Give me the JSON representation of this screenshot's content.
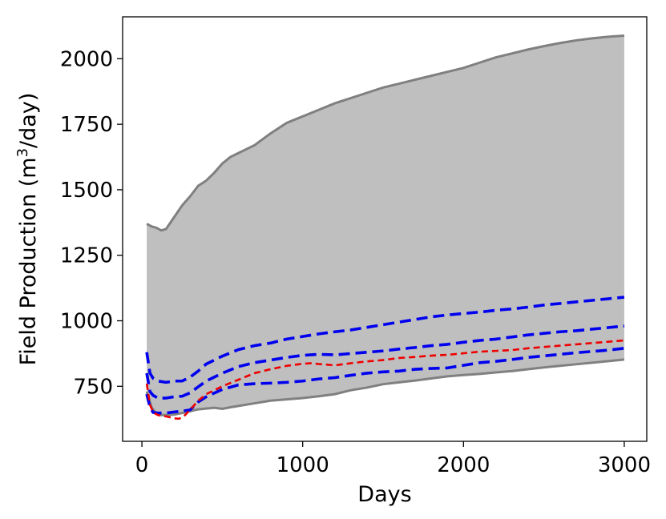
{
  "chart_data": {
    "type": "area",
    "title": "",
    "xlabel": "Days",
    "ylabel_main": "Field Production (m",
    "ylabel_sup": "3",
    "ylabel_tail": "/day)",
    "xlim": [
      -120,
      3140
    ],
    "ylim": [
      540,
      2160
    ],
    "xticks": [
      0,
      1000,
      2000,
      3000
    ],
    "xtick_labels": [
      "0",
      "1000",
      "2000",
      "3000"
    ],
    "yticks": [
      750,
      1000,
      1250,
      1500,
      1750,
      2000
    ],
    "ytick_labels": [
      "750",
      "1000",
      "1250",
      "1500",
      "1750",
      "2000"
    ],
    "grid": false,
    "colors": {
      "band_fill": "#bfbfbf",
      "band_edge": "#808080",
      "percentiles": "#0000ee",
      "reference": "#ee0000"
    },
    "band": {
      "x": [
        30,
        60,
        90,
        120,
        150,
        200,
        250,
        300,
        350,
        400,
        450,
        500,
        550,
        600,
        700,
        800,
        900,
        1000,
        1100,
        1200,
        1300,
        1400,
        1500,
        1600,
        1700,
        1800,
        1900,
        2000,
        2100,
        2200,
        2300,
        2400,
        2500,
        2600,
        2700,
        2800,
        2900,
        3000
      ],
      "upper": [
        1370,
        1360,
        1355,
        1345,
        1350,
        1395,
        1440,
        1475,
        1515,
        1535,
        1565,
        1600,
        1625,
        1640,
        1670,
        1715,
        1755,
        1780,
        1805,
        1830,
        1850,
        1870,
        1890,
        1905,
        1920,
        1935,
        1950,
        1965,
        1985,
        2005,
        2020,
        2035,
        2048,
        2060,
        2070,
        2078,
        2084,
        2088
      ],
      "lower": [
        730,
        670,
        645,
        640,
        640,
        642,
        648,
        655,
        662,
        665,
        668,
        664,
        670,
        675,
        685,
        695,
        700,
        705,
        712,
        720,
        735,
        745,
        758,
        765,
        772,
        780,
        788,
        793,
        797,
        803,
        808,
        815,
        822,
        828,
        834,
        840,
        846,
        852
      ]
    },
    "series": [
      {
        "style": "dashed",
        "color": "#0000ee",
        "x": [
          30,
          50,
          70,
          100,
          150,
          200,
          250,
          300,
          350,
          400,
          500,
          600,
          700,
          800,
          900,
          1000,
          1100,
          1200,
          1300,
          1400,
          1500,
          1600,
          1700,
          1800,
          1900,
          2000,
          2100,
          2200,
          2300,
          2400,
          2500,
          2600,
          2700,
          2800,
          2900,
          3000
        ],
        "values": [
          880,
          800,
          780,
          770,
          765,
          770,
          770,
          785,
          808,
          835,
          865,
          890,
          905,
          915,
          930,
          940,
          950,
          958,
          965,
          975,
          985,
          995,
          1005,
          1015,
          1022,
          1028,
          1033,
          1040,
          1045,
          1052,
          1060,
          1066,
          1072,
          1078,
          1084,
          1090
        ]
      },
      {
        "style": "dashed",
        "color": "#0000ee",
        "x": [
          30,
          50,
          70,
          100,
          150,
          200,
          250,
          300,
          350,
          400,
          500,
          600,
          700,
          800,
          900,
          1000,
          1100,
          1200,
          1300,
          1400,
          1500,
          1600,
          1700,
          1800,
          1900,
          2000,
          2100,
          2200,
          2300,
          2400,
          2500,
          2600,
          2700,
          2800,
          2900,
          3000
        ],
        "values": [
          800,
          730,
          715,
          705,
          705,
          710,
          712,
          725,
          748,
          770,
          800,
          825,
          840,
          850,
          860,
          868,
          872,
          870,
          875,
          880,
          885,
          892,
          898,
          905,
          910,
          918,
          925,
          930,
          938,
          946,
          952,
          958,
          962,
          968,
          974,
          980
        ]
      },
      {
        "style": "dashed",
        "color": "#0000ee",
        "x": [
          30,
          50,
          70,
          100,
          150,
          200,
          250,
          300,
          350,
          400,
          500,
          600,
          700,
          800,
          900,
          1000,
          1100,
          1200,
          1300,
          1400,
          1500,
          1600,
          1700,
          1800,
          1900,
          2000,
          2100,
          2200,
          2300,
          2400,
          2500,
          2600,
          2700,
          2800,
          2900,
          3000
        ],
        "values": [
          720,
          670,
          650,
          648,
          648,
          652,
          655,
          660,
          690,
          710,
          738,
          755,
          760,
          762,
          765,
          770,
          778,
          783,
          792,
          800,
          805,
          808,
          815,
          818,
          820,
          830,
          840,
          845,
          852,
          860,
          866,
          872,
          878,
          883,
          888,
          895
        ]
      },
      {
        "style": "dashed",
        "color": "#ee0000",
        "x": [
          30,
          50,
          70,
          100,
          150,
          200,
          230,
          260,
          300,
          350,
          400,
          450,
          500,
          600,
          700,
          800,
          900,
          1000,
          1050,
          1100,
          1200,
          1300,
          1400,
          1500,
          1600,
          1700,
          1800,
          1900,
          2000,
          2100,
          2200,
          2300,
          2400,
          2500,
          2600,
          2700,
          2800,
          2900,
          3000
        ],
        "values": [
          760,
          680,
          650,
          640,
          635,
          628,
          626,
          635,
          660,
          695,
          720,
          735,
          750,
          775,
          800,
          815,
          828,
          836,
          838,
          835,
          830,
          838,
          845,
          850,
          858,
          862,
          867,
          870,
          876,
          882,
          885,
          888,
          895,
          900,
          905,
          910,
          915,
          920,
          925
        ]
      }
    ]
  }
}
